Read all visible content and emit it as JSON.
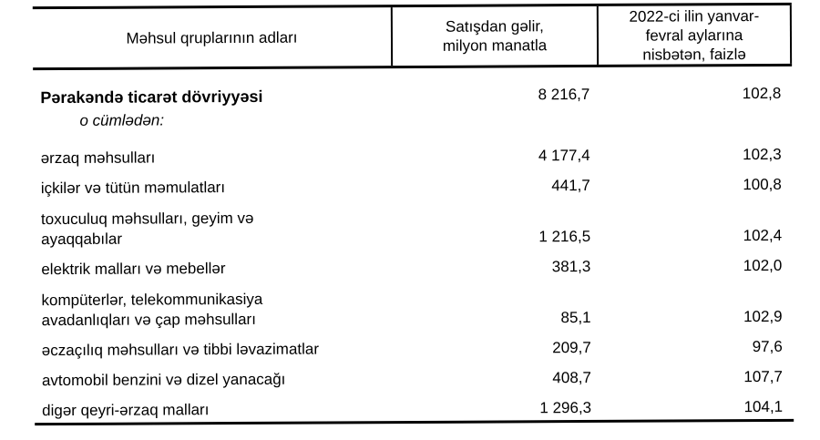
{
  "page": {
    "background_color": "#ffffff",
    "text_color": "#000000",
    "border_color": "#000000"
  },
  "table": {
    "columns": [
      {
        "label": "Məhsul qruplarının adları"
      },
      {
        "label": "Satışdan gəlir,\nmilyon manatla"
      },
      {
        "label": "2022-ci ilin yanvar-\nfevral aylarına\nnisbətən, faizlə"
      }
    ],
    "total_row": {
      "label": "Pərakəndə ticarət dövriyyəsi",
      "note": "o cümlədən:",
      "revenue": "8 216,7",
      "percent": "102,8"
    },
    "rows": [
      {
        "label": "ərzaq məhsulları",
        "revenue": "4 177,4",
        "percent": "102,3"
      },
      {
        "label": "içkilər və tütün məmulatları",
        "revenue": "441,7",
        "percent": "100,8"
      },
      {
        "label": "toxuculuq məhsulları, geyim və\nayaqqabılar",
        "revenue": "1 216,5",
        "percent": "102,4"
      },
      {
        "label": "elektrik malları və mebellər",
        "revenue": "381,3",
        "percent": "102,0"
      },
      {
        "label": "kompüterlər, telekommunikasiya\navadanlıqları və çap məhsulları",
        "revenue": "85,1",
        "percent": "102,9"
      },
      {
        "label": "əczaçılıq məhsulları və tibbi ləvazimatlar",
        "revenue": "209,7",
        "percent": "97,6"
      },
      {
        "label": "avtomobil benzini və dizel yanacağı",
        "revenue": "408,7",
        "percent": "107,7"
      },
      {
        "label": "digər qeyri-ərzaq malları",
        "revenue": "1 296,3",
        "percent": "104,1"
      }
    ]
  }
}
